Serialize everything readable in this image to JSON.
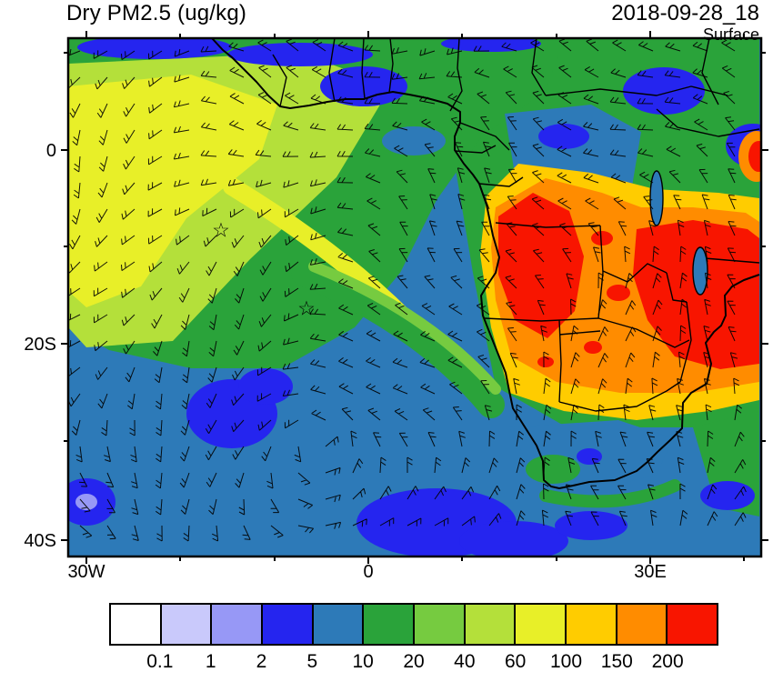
{
  "header": {
    "title": "Dry PM2.5 (ug/kg)",
    "datetime": "2018-09-28_18",
    "level": "Surface"
  },
  "axes": {
    "y": [
      "0",
      "20S",
      "40S"
    ],
    "x": [
      "30W",
      "0",
      "30E"
    ]
  },
  "colorbar": {
    "labels": [
      "0.1",
      "1",
      "2",
      "5",
      "10",
      "20",
      "40",
      "60",
      "100",
      "150",
      "200"
    ],
    "colors": [
      "#ffffff",
      "#c9c9fb",
      "#9798f6",
      "#2525ef",
      "#2d7ab8",
      "#2aa33a",
      "#76cb40",
      "#b4e03a",
      "#e8ef28",
      "#ffcc00",
      "#ff8c00",
      "#f81500"
    ]
  },
  "chart_data": {
    "type": "heatmap",
    "subtype": "filled-contour geographic map with wind barbs",
    "title": "Dry PM2.5 (ug/kg)",
    "datetime": "2018-09-28_18",
    "level": "Surface",
    "units": "ug/kg",
    "lon_range": [
      -31.5,
      40.5
    ],
    "lat_range": [
      -41.8,
      11.5
    ],
    "x_ticks": [
      "30W",
      "0",
      "30E"
    ],
    "y_ticks": [
      "0",
      "20S",
      "40S"
    ],
    "contour_levels": [
      0.1,
      1,
      2,
      5,
      10,
      20,
      40,
      60,
      100,
      150,
      200
    ],
    "palette": [
      "#ffffff",
      "#c9c9fb",
      "#9798f6",
      "#2525ef",
      "#2d7ab8",
      "#2aa33a",
      "#76cb40",
      "#b4e03a",
      "#e8ef28",
      "#ffcc00",
      "#ff8c00",
      "#f81500"
    ],
    "legend_position": "bottom",
    "features": [
      {
        "region": "Angola coastal interior",
        "approx_value": "200+",
        "appearance": "red core"
      },
      {
        "region": "Zambia-Zimbabwe-Mozambique",
        "approx_value": "150-200+",
        "appearance": "red/orange mass reaching east edge"
      },
      {
        "region": "fringe of southern-Africa burning region",
        "approx_value": "60-150",
        "appearance": "gold/orange ring"
      },
      {
        "region": "West Africa / NE tropical Atlantic smoke plume",
        "approx_value": "40-100",
        "appearance": "yellow-green band arcing southwest over ocean"
      },
      {
        "region": "Congo basin",
        "approx_value": "10-20",
        "appearance": "blue-green mix over land"
      },
      {
        "region": "South Atlantic background",
        "approx_value": "10-20",
        "appearance": "medium blue"
      },
      {
        "region": "scattered clean patches (south-central Atlantic, southern coast, top edge)",
        "approx_value": "5-10",
        "appearance": "dark blue"
      }
    ],
    "markers": [
      {
        "symbol": "☆",
        "lon": -15.2,
        "lat": -8.2
      },
      {
        "symbol": "☆",
        "lon": -6.1,
        "lat": -16.2
      }
    ],
    "wind": {
      "symbol": "barbs",
      "coverage": "full domain",
      "pattern": "anticyclonic gyre around the South Atlantic High; easterly trades north of ~15S; equatorward flow along the Benguela coast; westerlies south of ~35S"
    }
  }
}
